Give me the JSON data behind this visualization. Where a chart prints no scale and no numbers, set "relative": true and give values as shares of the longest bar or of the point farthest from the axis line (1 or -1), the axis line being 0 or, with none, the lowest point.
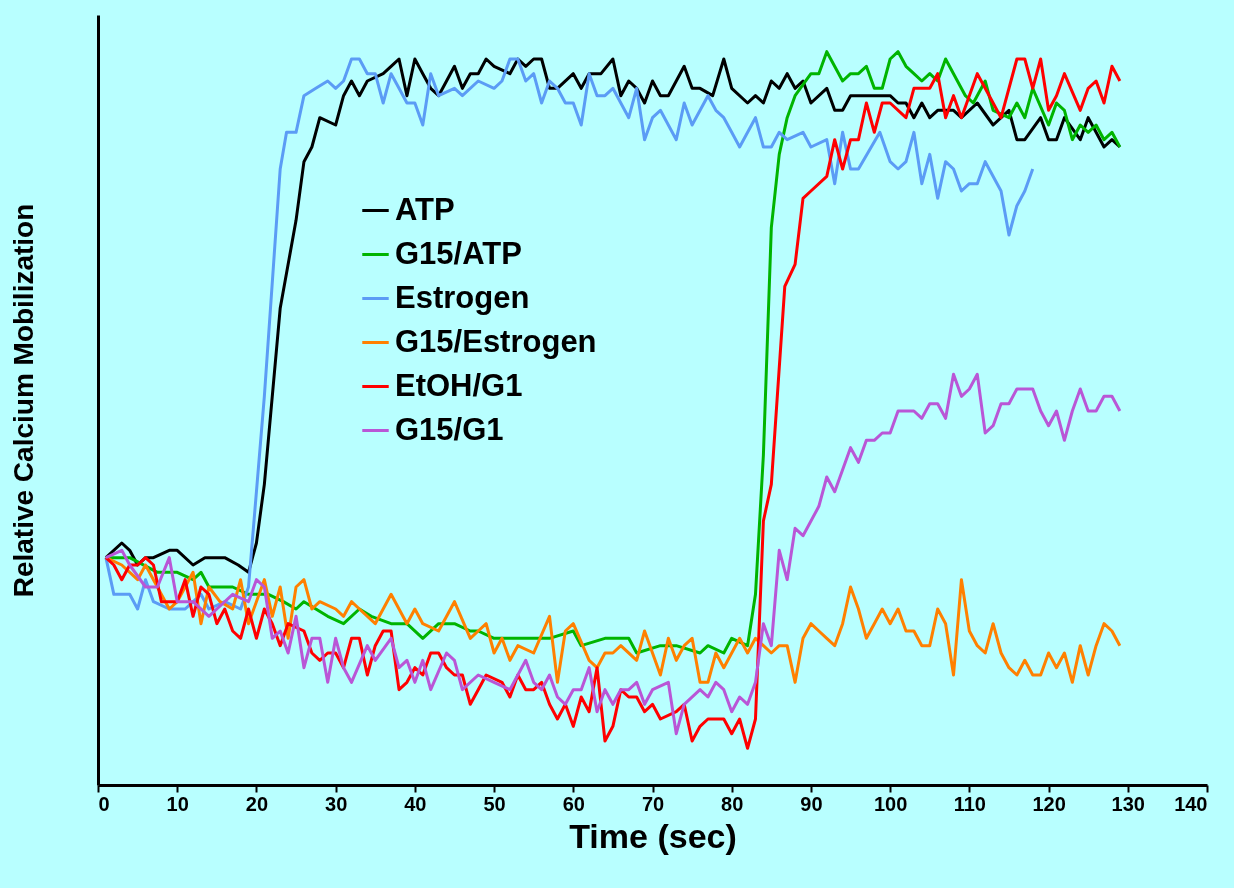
{
  "chart_data": {
    "type": "line",
    "relative": true,
    "xlabel": "Time (sec)",
    "ylabel": "Relative Calcium Mobilization",
    "xlim": [
      0,
      140
    ],
    "xticks": [
      0,
      10,
      20,
      30,
      40,
      50,
      60,
      70,
      80,
      90,
      100,
      110,
      120,
      130,
      140
    ],
    "grid": false,
    "legend": "top left",
    "marker": "none",
    "line_style": "solid",
    "series": [
      {
        "name": "ATP",
        "color": "#000000",
        "x": [
          1,
          3,
          4,
          5,
          6,
          7,
          9,
          10,
          12,
          13.5,
          16,
          17.7,
          19,
          20,
          21,
          22,
          23,
          25,
          26,
          27,
          28,
          30,
          31,
          32,
          33,
          34,
          36,
          37,
          38,
          39,
          40,
          41,
          42,
          43,
          45,
          46,
          47,
          48,
          49,
          50,
          52,
          53,
          54,
          55,
          56,
          57,
          58,
          60,
          61,
          62,
          63.5,
          65,
          66,
          67,
          68,
          69,
          70,
          71,
          72,
          74,
          75,
          76,
          77.6,
          79,
          80,
          82,
          83,
          84,
          85,
          86,
          87,
          88,
          89,
          90,
          92,
          93,
          94,
          95,
          98,
          100,
          101,
          102,
          103,
          104,
          105,
          106,
          108,
          109,
          111,
          113,
          114,
          115,
          116,
          117,
          119,
          120,
          121,
          122,
          124,
          125,
          126,
          127,
          128,
          129
        ],
        "values": [
          0.31,
          0.33,
          0.32,
          0.3,
          0.31,
          0.31,
          0.32,
          0.32,
          0.3,
          0.31,
          0.31,
          0.3,
          0.29,
          0.33,
          0.41,
          0.53,
          0.65,
          0.77,
          0.85,
          0.87,
          0.91,
          0.9,
          0.94,
          0.96,
          0.94,
          0.96,
          0.97,
          0.98,
          0.99,
          0.94,
          0.99,
          0.97,
          0.95,
          0.94,
          0.98,
          0.95,
          0.97,
          0.97,
          0.99,
          0.98,
          0.97,
          0.99,
          0.98,
          0.99,
          0.99,
          0.95,
          0.95,
          0.97,
          0.95,
          0.97,
          0.97,
          0.99,
          0.94,
          0.96,
          0.95,
          0.93,
          0.96,
          0.94,
          0.94,
          0.98,
          0.95,
          0.95,
          0.94,
          0.99,
          0.95,
          0.93,
          0.94,
          0.93,
          0.96,
          0.95,
          0.97,
          0.95,
          0.96,
          0.93,
          0.95,
          0.92,
          0.92,
          0.94,
          0.94,
          0.94,
          0.93,
          0.93,
          0.91,
          0.93,
          0.91,
          0.92,
          0.92,
          0.91,
          0.93,
          0.9,
          0.91,
          0.92,
          0.88,
          0.88,
          0.91,
          0.88,
          0.88,
          0.91,
          0.88,
          0.91,
          0.89,
          0.87,
          0.88,
          0.87
        ]
      },
      {
        "name": "G15/ATP",
        "color": "#00b400",
        "x": [
          1,
          4,
          7.5,
          10,
          12,
          13,
          14,
          15.4,
          17,
          19,
          21.5,
          23.4,
          25,
          26,
          29,
          31,
          33,
          34.5,
          37,
          39,
          41,
          43,
          45,
          47,
          48,
          50,
          53,
          55,
          57,
          60,
          61,
          64,
          67,
          68,
          71,
          73,
          76,
          77,
          79,
          80,
          82,
          83,
          84,
          85,
          86,
          87,
          88,
          90,
          91,
          92,
          94,
          95,
          96,
          97,
          98,
          99,
          100,
          101,
          102,
          103,
          104,
          105,
          106,
          107,
          108,
          109.5,
          110.5,
          112,
          113,
          115,
          116,
          117,
          118,
          120,
          121,
          122,
          123,
          124,
          125,
          126,
          127,
          128,
          129
        ],
        "values": [
          0.31,
          0.31,
          0.29,
          0.29,
          0.28,
          0.29,
          0.27,
          0.27,
          0.27,
          0.26,
          0.26,
          0.25,
          0.24,
          0.25,
          0.23,
          0.22,
          0.24,
          0.23,
          0.22,
          0.22,
          0.2,
          0.22,
          0.22,
          0.21,
          0.21,
          0.2,
          0.2,
          0.2,
          0.2,
          0.21,
          0.19,
          0.2,
          0.2,
          0.18,
          0.19,
          0.19,
          0.18,
          0.19,
          0.18,
          0.2,
          0.19,
          0.26,
          0.45,
          0.76,
          0.86,
          0.91,
          0.94,
          0.97,
          0.97,
          1.0,
          0.96,
          0.97,
          0.97,
          0.98,
          0.95,
          0.95,
          0.99,
          1.0,
          0.98,
          0.97,
          0.96,
          0.97,
          0.96,
          0.99,
          0.97,
          0.94,
          0.93,
          0.96,
          0.92,
          0.91,
          0.93,
          0.91,
          0.95,
          0.9,
          0.93,
          0.92,
          0.88,
          0.9,
          0.89,
          0.9,
          0.88,
          0.89,
          0.87
        ]
      },
      {
        "name": "Estrogen",
        "color": "#5b9cf5",
        "x": [
          1,
          2,
          4,
          5,
          6,
          7,
          9,
          11,
          13,
          14,
          16,
          18,
          19,
          21,
          23,
          23.8,
          25,
          26,
          27.5,
          29,
          30,
          31,
          32,
          33,
          34,
          35,
          36,
          37,
          38,
          39,
          40,
          41,
          42,
          43,
          45,
          46,
          48,
          50,
          51,
          52,
          53,
          54,
          55,
          56,
          57,
          58,
          59,
          60,
          61,
          62,
          63,
          64,
          65,
          66,
          67,
          68,
          69,
          70,
          71,
          73,
          74,
          75,
          77,
          78,
          79,
          80,
          81,
          83,
          84,
          85,
          86,
          87,
          89,
          90,
          92,
          93,
          94,
          95,
          96,
          98.7,
          100,
          101,
          102,
          103,
          104,
          105,
          106,
          107,
          108,
          109,
          110,
          111,
          112,
          114,
          115,
          116,
          117,
          118
        ],
        "values": [
          0.31,
          0.26,
          0.26,
          0.24,
          0.28,
          0.25,
          0.24,
          0.24,
          0.26,
          0.24,
          0.25,
          0.24,
          0.27,
          0.53,
          0.84,
          0.89,
          0.89,
          0.94,
          0.95,
          0.96,
          0.95,
          0.96,
          0.99,
          0.99,
          0.97,
          0.97,
          0.93,
          0.97,
          0.95,
          0.93,
          0.93,
          0.9,
          0.97,
          0.94,
          0.95,
          0.94,
          0.96,
          0.95,
          0.96,
          0.99,
          0.99,
          0.96,
          0.97,
          0.93,
          0.96,
          0.95,
          0.93,
          0.93,
          0.9,
          0.97,
          0.94,
          0.94,
          0.95,
          0.93,
          0.91,
          0.95,
          0.88,
          0.91,
          0.92,
          0.88,
          0.93,
          0.9,
          0.94,
          0.92,
          0.91,
          0.89,
          0.87,
          0.91,
          0.87,
          0.87,
          0.89,
          0.88,
          0.89,
          0.87,
          0.88,
          0.82,
          0.89,
          0.84,
          0.84,
          0.89,
          0.85,
          0.84,
          0.85,
          0.89,
          0.82,
          0.86,
          0.8,
          0.85,
          0.84,
          0.81,
          0.82,
          0.82,
          0.85,
          0.81,
          0.75,
          0.79,
          0.81,
          0.84
        ]
      },
      {
        "name": "G15/Estrogen",
        "color": "#ff8000",
        "x": [
          1,
          3,
          5,
          6,
          7,
          9,
          10,
          12,
          13,
          14,
          15.4,
          17,
          18,
          19,
          21,
          22,
          23,
          24,
          25,
          26,
          27,
          28,
          30,
          31,
          32,
          33,
          35,
          37,
          38,
          39,
          40,
          41,
          43,
          45,
          47,
          48,
          49,
          50,
          51,
          52,
          53,
          55,
          57,
          58,
          59,
          60,
          62,
          63,
          64,
          65,
          66,
          68,
          69,
          71,
          72,
          73,
          74,
          75,
          76,
          77,
          78,
          79,
          81,
          82,
          83,
          84,
          85,
          86,
          87,
          88,
          89,
          90,
          91,
          92,
          93,
          94,
          95,
          96,
          97,
          98,
          99,
          100,
          101,
          102,
          103,
          104,
          105,
          106,
          107,
          108,
          109,
          110,
          111,
          112,
          113,
          114,
          115,
          116,
          117,
          118,
          119,
          120,
          121,
          122,
          123,
          124,
          125,
          126,
          127,
          128,
          129
        ],
        "values": [
          0.31,
          0.3,
          0.28,
          0.3,
          0.28,
          0.24,
          0.25,
          0.29,
          0.22,
          0.27,
          0.25,
          0.24,
          0.28,
          0.22,
          0.28,
          0.23,
          0.27,
          0.2,
          0.27,
          0.28,
          0.24,
          0.25,
          0.24,
          0.23,
          0.25,
          0.24,
          0.22,
          0.26,
          0.24,
          0.22,
          0.24,
          0.22,
          0.21,
          0.25,
          0.2,
          0.21,
          0.22,
          0.18,
          0.2,
          0.17,
          0.19,
          0.18,
          0.23,
          0.14,
          0.21,
          0.22,
          0.17,
          0.16,
          0.18,
          0.18,
          0.19,
          0.17,
          0.21,
          0.15,
          0.2,
          0.17,
          0.19,
          0.2,
          0.14,
          0.14,
          0.18,
          0.16,
          0.2,
          0.18,
          0.2,
          0.19,
          0.18,
          0.19,
          0.19,
          0.14,
          0.2,
          0.22,
          0.21,
          0.2,
          0.19,
          0.22,
          0.27,
          0.24,
          0.2,
          0.22,
          0.24,
          0.22,
          0.24,
          0.21,
          0.21,
          0.19,
          0.19,
          0.24,
          0.22,
          0.15,
          0.28,
          0.21,
          0.19,
          0.18,
          0.22,
          0.18,
          0.16,
          0.15,
          0.17,
          0.15,
          0.15,
          0.18,
          0.16,
          0.18,
          0.14,
          0.19,
          0.15,
          0.19,
          0.22,
          0.21,
          0.19
        ]
      },
      {
        "name": "EtOH/G1",
        "color": "#ff0000",
        "x": [
          1,
          2,
          3,
          4,
          5,
          6,
          7,
          8,
          9,
          10,
          11,
          12,
          13,
          14,
          15,
          16,
          17,
          18,
          19,
          20,
          21,
          22,
          23,
          24,
          26,
          27,
          28,
          29,
          30,
          31,
          32,
          33,
          34,
          35,
          36,
          37,
          38,
          39,
          40,
          41,
          42,
          43,
          44,
          45,
          46,
          47,
          48,
          49,
          51,
          52,
          53,
          54,
          55,
          56,
          57,
          58,
          59,
          60,
          61,
          62,
          63,
          64,
          65,
          66,
          67,
          68,
          69,
          70,
          71,
          73,
          74,
          75,
          76,
          77,
          79,
          80,
          81,
          82,
          83,
          84,
          85,
          86.7,
          88,
          89,
          90,
          92,
          93,
          94,
          95,
          96,
          97,
          98,
          99,
          100,
          102,
          103,
          105,
          106,
          107,
          108,
          109,
          111,
          112,
          114,
          116,
          117,
          118,
          119,
          120,
          121,
          122,
          124,
          125,
          126,
          127,
          128,
          129
        ],
        "values": [
          0.31,
          0.3,
          0.28,
          0.3,
          0.3,
          0.31,
          0.3,
          0.25,
          0.25,
          0.25,
          0.28,
          0.23,
          0.27,
          0.26,
          0.22,
          0.24,
          0.21,
          0.2,
          0.24,
          0.2,
          0.24,
          0.22,
          0.19,
          0.22,
          0.21,
          0.18,
          0.17,
          0.18,
          0.18,
          0.16,
          0.2,
          0.2,
          0.15,
          0.19,
          0.21,
          0.21,
          0.13,
          0.14,
          0.16,
          0.15,
          0.18,
          0.18,
          0.16,
          0.15,
          0.15,
          0.11,
          0.13,
          0.15,
          0.14,
          0.12,
          0.15,
          0.13,
          0.13,
          0.14,
          0.11,
          0.09,
          0.11,
          0.08,
          0.12,
          0.1,
          0.16,
          0.06,
          0.08,
          0.13,
          0.12,
          0.12,
          0.1,
          0.11,
          0.09,
          0.1,
          0.11,
          0.06,
          0.08,
          0.09,
          0.09,
          0.07,
          0.09,
          0.05,
          0.09,
          0.36,
          0.41,
          0.68,
          0.71,
          0.8,
          0.81,
          0.83,
          0.88,
          0.84,
          0.88,
          0.88,
          0.93,
          0.89,
          0.93,
          0.93,
          0.91,
          0.95,
          0.95,
          0.97,
          0.91,
          0.94,
          0.91,
          0.97,
          0.95,
          0.91,
          0.99,
          0.99,
          0.95,
          0.99,
          0.92,
          0.94,
          0.97,
          0.92,
          0.95,
          0.96,
          0.93,
          0.98,
          0.96
        ]
      },
      {
        "name": "G15/G1",
        "color": "#b956d6",
        "x": [
          1,
          3,
          4,
          6,
          7.5,
          9,
          10,
          11,
          12,
          14,
          15,
          17,
          19,
          20,
          21,
          22,
          23,
          24,
          25,
          26,
          27,
          28,
          29,
          30,
          31,
          32,
          34,
          35,
          37,
          38,
          39,
          40,
          41,
          42,
          44,
          45,
          46,
          48,
          50,
          52,
          54,
          55,
          56,
          57,
          58,
          59,
          60,
          61,
          62,
          63,
          64,
          65,
          66,
          67,
          68,
          69,
          70,
          72,
          73,
          74,
          76,
          77,
          78,
          79,
          80,
          81,
          82,
          83,
          84,
          85,
          86,
          87,
          88,
          89,
          91,
          92,
          93,
          94,
          95,
          96,
          97,
          98,
          99,
          100,
          101,
          102,
          103,
          104,
          105,
          106,
          107,
          108,
          109,
          110,
          111,
          112,
          113,
          114,
          115,
          116,
          117,
          118,
          119,
          120,
          121,
          122,
          123,
          124,
          125,
          126,
          127,
          128,
          129
        ],
        "values": [
          0.31,
          0.32,
          0.3,
          0.27,
          0.27,
          0.31,
          0.25,
          0.25,
          0.25,
          0.23,
          0.24,
          0.26,
          0.25,
          0.28,
          0.27,
          0.2,
          0.21,
          0.18,
          0.23,
          0.16,
          0.2,
          0.2,
          0.14,
          0.2,
          0.16,
          0.14,
          0.19,
          0.17,
          0.2,
          0.16,
          0.17,
          0.14,
          0.17,
          0.13,
          0.18,
          0.17,
          0.13,
          0.15,
          0.14,
          0.13,
          0.17,
          0.14,
          0.13,
          0.15,
          0.12,
          0.11,
          0.13,
          0.13,
          0.16,
          0.1,
          0.13,
          0.11,
          0.13,
          0.13,
          0.14,
          0.11,
          0.13,
          0.14,
          0.07,
          0.11,
          0.13,
          0.12,
          0.14,
          0.13,
          0.1,
          0.12,
          0.11,
          0.14,
          0.22,
          0.19,
          0.32,
          0.28,
          0.35,
          0.34,
          0.38,
          0.42,
          0.4,
          0.43,
          0.46,
          0.44,
          0.47,
          0.47,
          0.48,
          0.48,
          0.51,
          0.51,
          0.51,
          0.5,
          0.52,
          0.52,
          0.5,
          0.56,
          0.53,
          0.54,
          0.56,
          0.48,
          0.49,
          0.52,
          0.52,
          0.54,
          0.54,
          0.54,
          0.51,
          0.49,
          0.51,
          0.47,
          0.51,
          0.54,
          0.51,
          0.51,
          0.53,
          0.53,
          0.51
        ]
      }
    ]
  }
}
